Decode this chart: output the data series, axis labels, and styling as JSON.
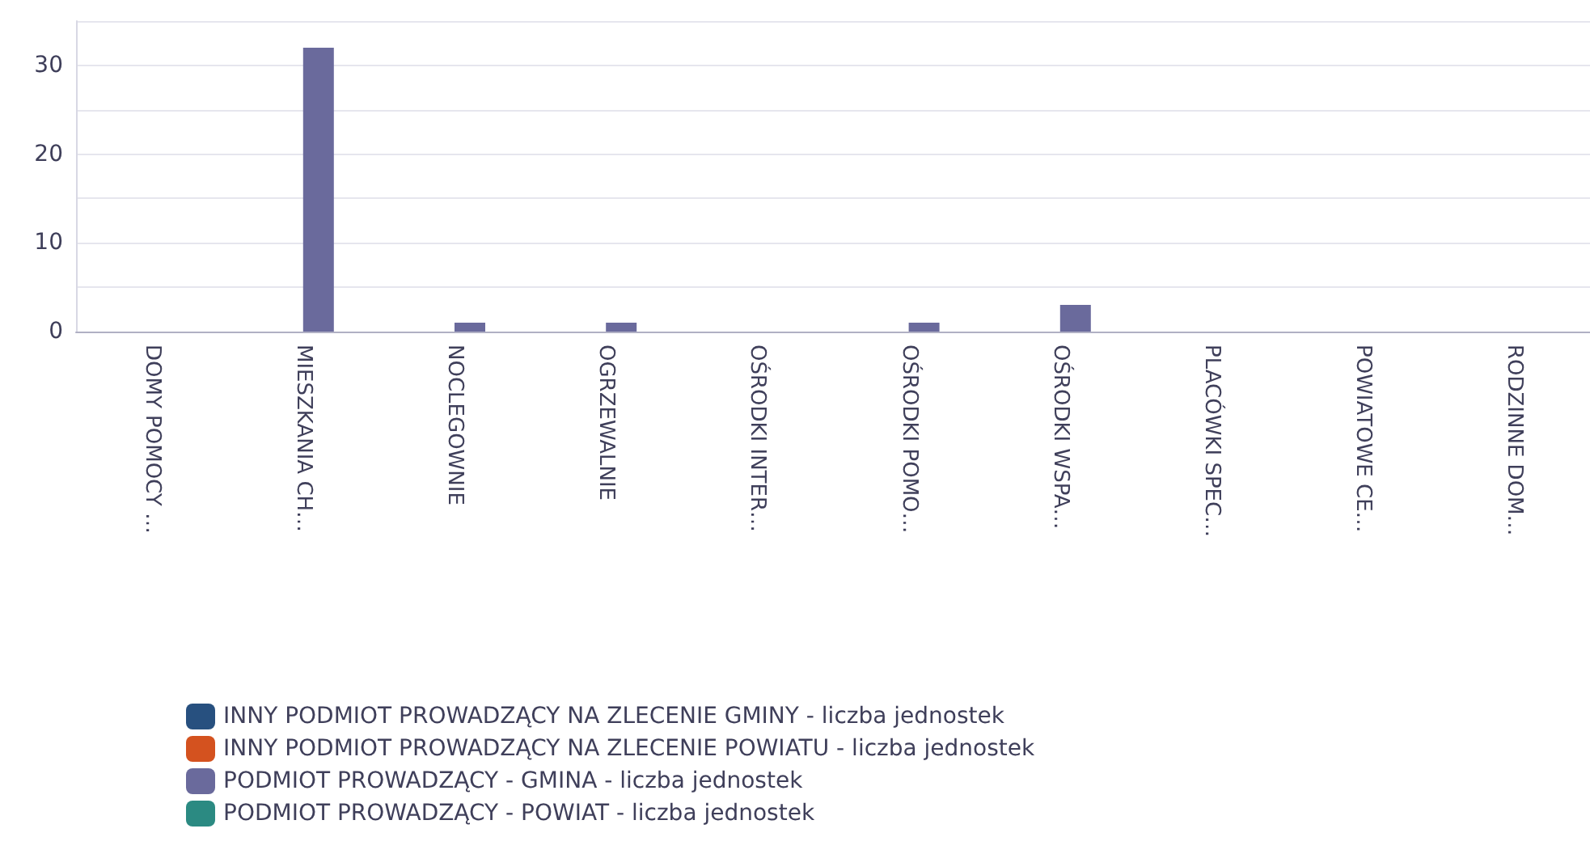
{
  "chart_data": {
    "type": "bar",
    "categories": [
      "DOMY POMOCY …",
      "MIESZKANIA CH…",
      "NOCLEGOWNIE",
      "OGRZEWALNIE",
      "OŚRODKI INTER…",
      "OŚRODKI POMO…",
      "OŚRODKI WSPA…",
      "PLACÓWKI SPEC…",
      "POWIATOWE CE…",
      "RODZINNE DOM…"
    ],
    "series": [
      {
        "name": "INNY PODMIOT PROWADZĄCY NA ZLECENIE GMINY - liczba jednostek",
        "color": "#27507f",
        "values": [
          0,
          0,
          0,
          0,
          0,
          0,
          0,
          0,
          0,
          0
        ]
      },
      {
        "name": "INNY PODMIOT PROWADZĄCY NA ZLECENIE POWIATU - liczba jednostek",
        "color": "#d4521f",
        "values": [
          0,
          0,
          0,
          0,
          0,
          0,
          0,
          0,
          0,
          0
        ]
      },
      {
        "name": "PODMIOT PROWADZĄCY - GMINA - liczba jednostek",
        "color": "#6a6a9c",
        "values": [
          0,
          32,
          1,
          1,
          0,
          1,
          3,
          0,
          0,
          0
        ]
      },
      {
        "name": "PODMIOT PROWADZĄCY - POWIAT - liczba jednostek",
        "color": "#2b8a82",
        "values": [
          0,
          0,
          0,
          0,
          0,
          0,
          0,
          0,
          0,
          0
        ]
      }
    ],
    "ylim": [
      0,
      35
    ],
    "yticks": [
      0,
      {
        "value": 5,
        "label": null
      },
      10,
      {
        "value": 15,
        "label": null
      },
      20,
      {
        "value": 25,
        "label": null
      },
      30,
      {
        "value": 35,
        "label": null
      }
    ],
    "grid": "y",
    "legend": "bottom left"
  }
}
